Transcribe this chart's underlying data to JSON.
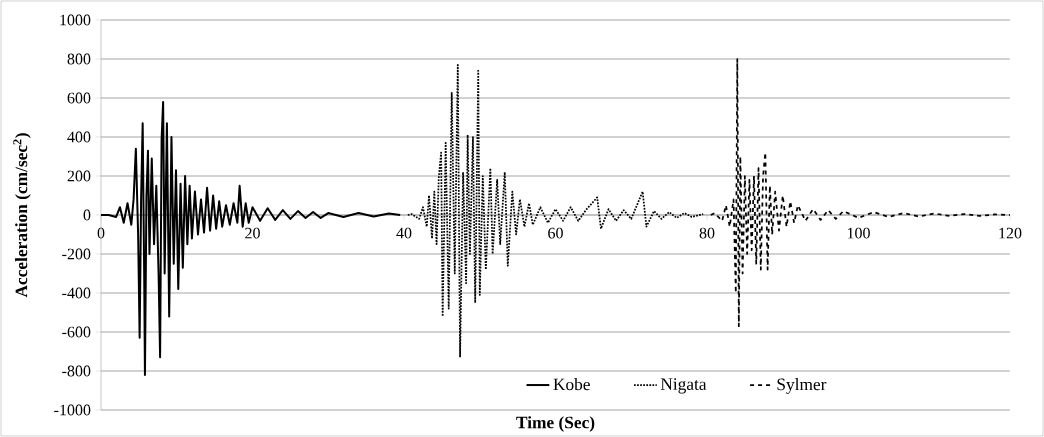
{
  "chart_data": {
    "type": "line",
    "xlabel": "Time (Sec)",
    "ylabel": "Acceleration (cm/sec$^{2}$)",
    "xlim": [
      0,
      120
    ],
    "ylim": [
      -1000,
      1000
    ],
    "xticks": [
      0,
      20,
      40,
      60,
      80,
      100,
      120
    ],
    "yticks": [
      -1000,
      -800,
      -600,
      -400,
      -200,
      0,
      200,
      400,
      600,
      800,
      1000
    ],
    "grid": "y",
    "legend": "bottom",
    "series": [
      {
        "name": "Kobe",
        "color": "#000000",
        "line_style": "solid",
        "x": [
          0,
          1,
          2,
          2.5,
          3,
          3.5,
          4,
          4.3,
          4.6,
          4.9,
          5.1,
          5.3,
          5.5,
          5.7,
          5.8,
          6.0,
          6.2,
          6.4,
          6.7,
          7.0,
          7.3,
          7.6,
          7.8,
          8.0,
          8.2,
          8.4,
          8.7,
          9.0,
          9.3,
          9.6,
          9.9,
          10.2,
          10.5,
          10.8,
          11.1,
          11.4,
          11.7,
          12.0,
          12.4,
          12.8,
          13.2,
          13.6,
          14.0,
          14.4,
          14.8,
          15.2,
          15.6,
          16.0,
          16.5,
          17.0,
          17.5,
          18.0,
          18.3,
          18.7,
          19.1,
          19.5,
          20,
          21,
          22,
          23,
          24,
          25,
          26,
          27,
          28,
          29,
          30,
          32,
          34,
          36,
          38,
          39.5
        ],
        "values": [
          0,
          0,
          -10,
          40,
          -40,
          60,
          -50,
          80,
          340,
          -100,
          -630,
          100,
          470,
          -300,
          -820,
          100,
          330,
          -200,
          290,
          -150,
          150,
          -300,
          -730,
          390,
          580,
          -300,
          470,
          -520,
          400,
          -250,
          230,
          -380,
          160,
          -270,
          200,
          -150,
          150,
          -120,
          120,
          -100,
          80,
          -90,
          140,
          -80,
          100,
          -70,
          70,
          -60,
          50,
          -50,
          60,
          -40,
          150,
          -60,
          60,
          -40,
          40,
          -30,
          35,
          -25,
          25,
          -20,
          20,
          -15,
          15,
          -15,
          10,
          -10,
          10,
          -8,
          8,
          0
        ]
      },
      {
        "name": "Nigata",
        "color": "#000000",
        "line_style": "dotted",
        "x": [
          40.5,
          41,
          42,
          42.5,
          43,
          43.3,
          43.7,
          44,
          44.3,
          44.6,
          44.9,
          45.1,
          45.5,
          45.9,
          46.3,
          46.7,
          47.1,
          47.4,
          47.8,
          48.2,
          48.4,
          48.7,
          49.1,
          49.4,
          49.8,
          50.0,
          50.4,
          50.8,
          51.4,
          51.7,
          52.3,
          52.7,
          53.3,
          53.7,
          54.3,
          54.8,
          55.3,
          55.9,
          56.5,
          57,
          58,
          59,
          60,
          61,
          62,
          63,
          64,
          65.5,
          66,
          67,
          68,
          69,
          70,
          71.5,
          72,
          73,
          74,
          75,
          76,
          77,
          78,
          79.5
        ],
        "values": [
          0,
          5,
          -20,
          40,
          -60,
          100,
          -120,
          120,
          -150,
          200,
          320,
          -520,
          370,
          -480,
          630,
          -300,
          770,
          -730,
          220,
          -350,
          410,
          -200,
          400,
          -450,
          740,
          -410,
          200,
          -280,
          240,
          -200,
          180,
          -150,
          220,
          -260,
          120,
          -100,
          80,
          -60,
          60,
          -50,
          40,
          -40,
          30,
          -30,
          40,
          -30,
          25,
          90,
          -70,
          30,
          -30,
          25,
          -20,
          120,
          -60,
          20,
          -20,
          15,
          -15,
          10,
          -10,
          5
        ]
      },
      {
        "name": "Sylmer",
        "color": "#000000",
        "line_style": "dashed",
        "x": [
          80.5,
          81,
          82,
          82.5,
          83,
          83.5,
          83.8,
          84.0,
          84.2,
          84.4,
          84.7,
          85.0,
          85.3,
          85.6,
          85.9,
          86.2,
          86.5,
          86.8,
          87.1,
          87.4,
          87.7,
          88.0,
          88.3,
          88.6,
          89,
          89.5,
          90,
          90.5,
          91,
          91.5,
          92,
          93,
          94,
          95,
          96,
          97,
          98,
          100,
          102,
          104,
          106,
          108,
          110,
          112,
          114,
          116,
          118,
          120
        ],
        "values": [
          0,
          10,
          -30,
          50,
          -60,
          80,
          -400,
          800,
          -570,
          300,
          -300,
          200,
          -200,
          180,
          -180,
          200,
          -250,
          240,
          -280,
          200,
          320,
          -280,
          150,
          -100,
          120,
          -80,
          100,
          -60,
          70,
          -40,
          50,
          -30,
          30,
          -25,
          25,
          -20,
          20,
          -15,
          15,
          -10,
          10,
          -8,
          8,
          -5,
          5,
          -5,
          3,
          0
        ]
      }
    ]
  }
}
